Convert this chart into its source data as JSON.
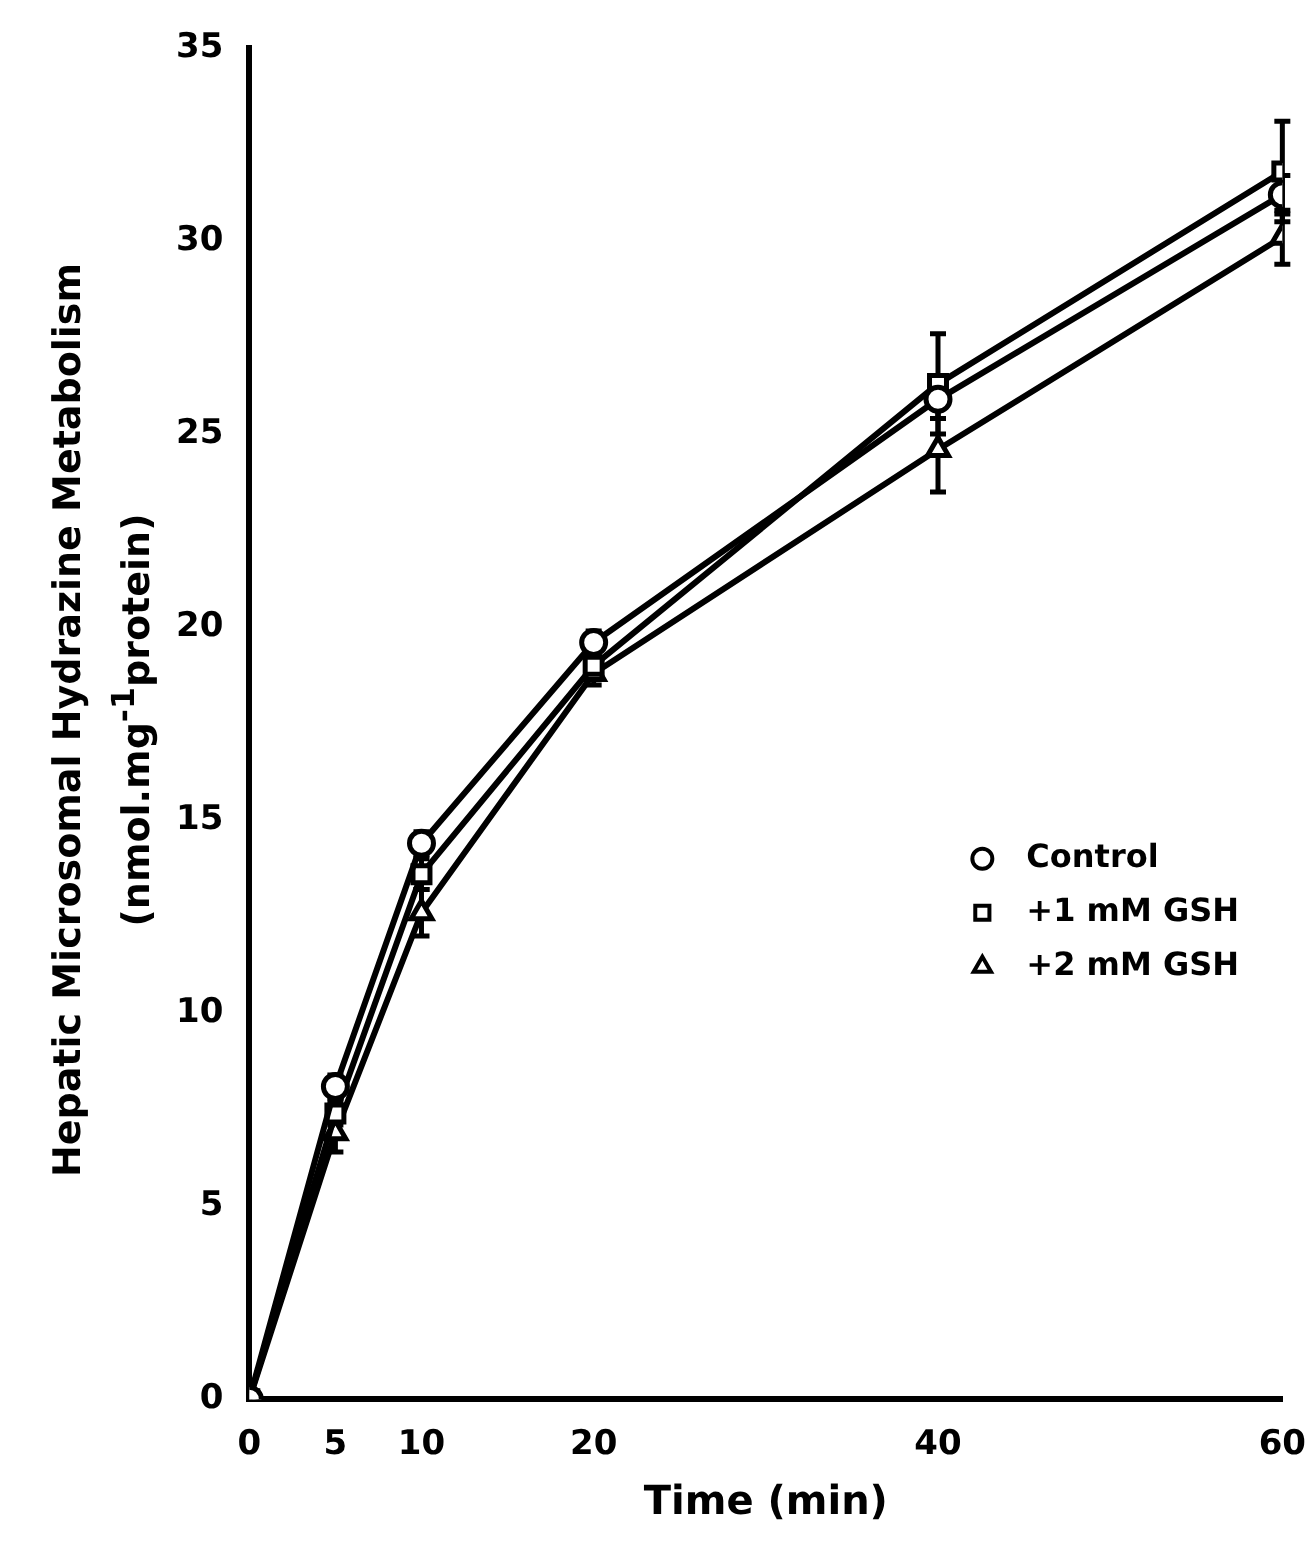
{
  "chart_data": {
    "type": "line",
    "xlabel": "Time (min)",
    "ylabel": "Hepatic Microsomal Hydrazine Metabolism\n(nmol.mg$^{-1}$protein)",
    "x": [
      0,
      5,
      10,
      20,
      40,
      60
    ],
    "xlim": [
      0,
      60
    ],
    "xticks": [
      0,
      5,
      10,
      20,
      40,
      60
    ],
    "ylim": [
      0,
      35
    ],
    "yticks": [
      0,
      5,
      10,
      15,
      20,
      25,
      30,
      35
    ],
    "grid": false,
    "legend": "right",
    "line_style": "solid",
    "series": [
      {
        "name": "Control",
        "color": "#000000",
        "marker": "circle",
        "values": [
          0,
          8.1,
          14.4,
          19.6,
          25.9,
          31.2
        ],
        "errors": [
          null,
          0.3,
          0.3,
          0.3,
          0.5,
          0.5
        ]
      },
      {
        "name": "+1 mM GSH",
        "color": "#000000",
        "marker": "square",
        "values": [
          0,
          7.4,
          13.6,
          19.0,
          26.3,
          31.8
        ],
        "errors": [
          null,
          0.3,
          0.4,
          0.3,
          1.3,
          1.3
        ]
      },
      {
        "name": "+2 mM GSH",
        "color": "#000000",
        "marker": "triangle",
        "values": [
          0,
          6.9,
          12.6,
          18.8,
          24.6,
          30.1
        ],
        "errors": [
          null,
          0.5,
          0.6,
          0.3,
          1.1,
          0.7
        ]
      }
    ]
  }
}
